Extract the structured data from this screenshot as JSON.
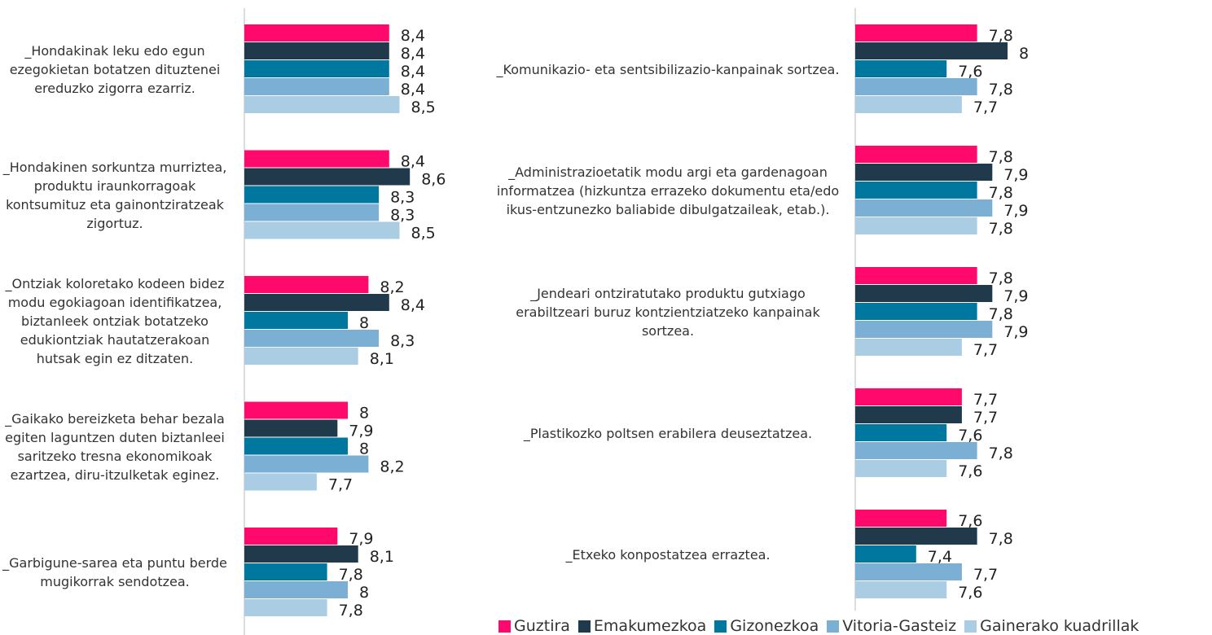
{
  "chart_data": [
    {
      "type": "bar",
      "orientation": "horizontal",
      "xlim": [
        7,
        9
      ],
      "categories": [
        "_Hondakinak leku edo egun ezegokietan botatzen dituztenei ereduzko zigorra ezarriz.",
        "_Hondakinen sorkuntza murriztea, produktu iraunkorragoak kontsumituz eta gainontziratzeak zigortuz.",
        "_Ontziak koloretako kodeen bidez modu egokiagoan identifikatzea, biztanleek ontziak botatzeko edukiontziak hautatzerakoan hutsak egin ez ditzaten.",
        "_Gaikako bereizketa behar bezala egiten laguntzen duten biztanleei saritzeko tresna ekonomikoak ezartzea, diru-itzulketak eginez.",
        "_Garbigune-sarea eta puntu berde mugikorrak sendotzea."
      ],
      "series": [
        {
          "name": "Guztira",
          "color": "#ff0a6c",
          "values": [
            8.4,
            8.4,
            8.2,
            8,
            7.9
          ],
          "value_labels": [
            "8,4",
            "8,4",
            "8,2",
            "8",
            "7,9"
          ]
        },
        {
          "name": "Emakumezkoa",
          "color": "#203a4c",
          "values": [
            8.4,
            8.6,
            8.4,
            7.9,
            8.1
          ],
          "value_labels": [
            "8,4",
            "8,6",
            "8,4",
            "7,9",
            "8,1"
          ]
        },
        {
          "name": "Gizonezkoa",
          "color": "#00779e",
          "values": [
            8.4,
            8.3,
            8,
            8,
            7.8
          ],
          "value_labels": [
            "8,4",
            "8,3",
            "8",
            "8",
            "7,8"
          ]
        },
        {
          "name": "Vitoria-Gasteiz",
          "color": "#7bafd4",
          "values": [
            8.4,
            8.3,
            8.3,
            8.2,
            8
          ],
          "value_labels": [
            "8,4",
            "8,3",
            "8,3",
            "8,2",
            "8"
          ]
        },
        {
          "name": "Gainerako kuadrillak",
          "color": "#aacde3",
          "values": [
            8.5,
            8.5,
            8.1,
            7.7,
            7.8
          ],
          "value_labels": [
            "8,5",
            "8,5",
            "8,1",
            "7,7",
            "7,8"
          ]
        }
      ]
    },
    {
      "type": "bar",
      "orientation": "horizontal",
      "xlim": [
        7,
        9
      ],
      "categories": [
        "_Komunikazio- eta sentsibilizazio-kanpainak sortzea.",
        "_Administrazioetatik modu argi eta gardenagoan informatzea (hizkuntza errazeko dokumentu eta/edo ikus-entzunezko baliabide dibulgatzaileak, etab.).",
        "_Jendeari ontziratutako produktu gutxiago erabiltzeari buruz kontzientziatzeko kanpainak sortzea.",
        "_Plastikozko poltsen erabilera deuseztatzea.",
        "_Etxeko konpostatzea erraztea."
      ],
      "series": [
        {
          "values": [
            7.8,
            7.8,
            7.8,
            7.7,
            7.6
          ],
          "value_labels": [
            "7,8",
            "7,8",
            "7,8",
            "7,7",
            "7,6"
          ]
        },
        {
          "values": [
            8,
            7.9,
            7.9,
            7.7,
            7.8
          ],
          "value_labels": [
            "8",
            "7,9",
            "7,9",
            "7,7",
            "7,8"
          ]
        },
        {
          "values": [
            7.6,
            7.8,
            7.8,
            7.6,
            7.4
          ],
          "value_labels": [
            "7,6",
            "7,8",
            "7,8",
            "7,6",
            "7,4"
          ]
        },
        {
          "values": [
            7.8,
            7.9,
            7.9,
            7.8,
            7.7
          ],
          "value_labels": [
            "7,8",
            "7,9",
            "7,9",
            "7,8",
            "7,7"
          ]
        },
        {
          "values": [
            7.7,
            7.8,
            7.7,
            7.6,
            7.6
          ],
          "value_labels": [
            "7,7",
            "7,8",
            "7,7",
            "7,6",
            "7,6"
          ]
        }
      ]
    }
  ]
}
